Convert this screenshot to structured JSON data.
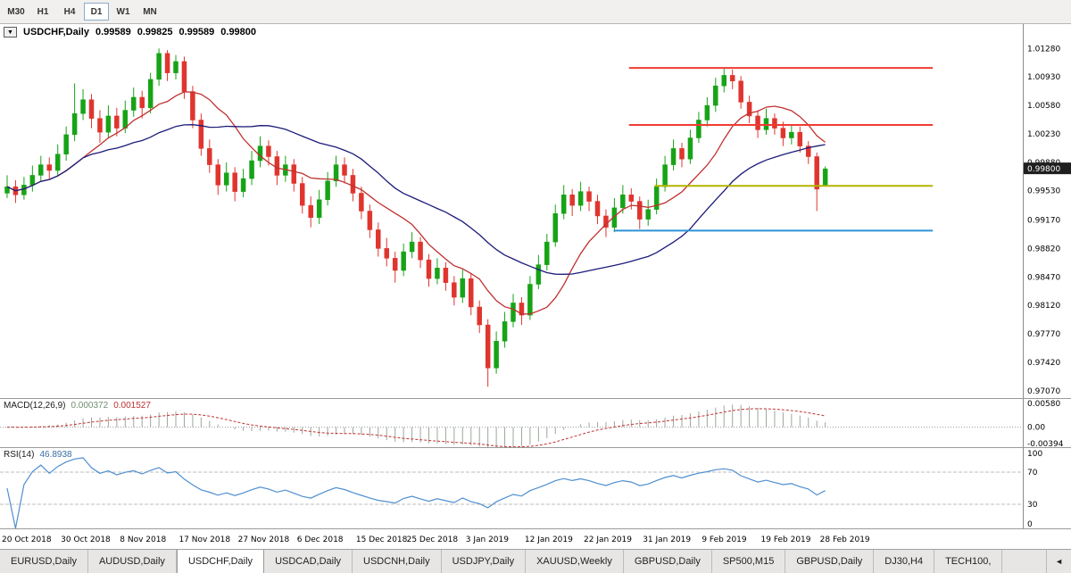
{
  "toolbar": {
    "periods": [
      "M30",
      "H1",
      "H4",
      "D1",
      "W1",
      "MN"
    ],
    "active_period": "D1"
  },
  "chart_header": {
    "collapse_icon": "▼",
    "symbol": "USDCHF,Daily",
    "open": "0.99589",
    "high": "0.99825",
    "low": "0.99589",
    "close": "0.99800"
  },
  "chart_data": {
    "type": "candlestick",
    "title": "USDCHF,Daily",
    "ylim": [
      0.9698,
      1.0158
    ],
    "y_ticks": [
      "1.01280",
      "1.00930",
      "1.00580",
      "1.00230",
      "0.99880",
      "0.99530",
      "0.99170",
      "0.98820",
      "0.98470",
      "0.98120",
      "0.97770",
      "0.97420",
      "0.97070"
    ],
    "current_price": 0.998,
    "current_price_label": "0.99800",
    "x_labels": [
      "20 Oct 2018",
      "30 Oct 2018",
      "8 Nov 2018",
      "17 Nov 2018",
      "27 Nov 2018",
      "6 Dec 2018",
      "15 Dec 2018",
      "25 Dec 2018",
      "3 Jan 2019",
      "12 Jan 2019",
      "22 Jan 2019",
      "31 Jan 2019",
      "9 Feb 2019",
      "19 Feb 2019",
      "28 Feb 2019"
    ],
    "x_label_indices": [
      0,
      7,
      14,
      21,
      28,
      35,
      42,
      48,
      55,
      62,
      69,
      76,
      83,
      90,
      97
    ],
    "bull_color": "#17a317",
    "bear_color": "#df352e",
    "overlays": [
      {
        "name": "ma-fast-line",
        "type": "sma",
        "period": 10,
        "color": "#c03030"
      },
      {
        "name": "ma-slow-line",
        "type": "sma",
        "period": 25,
        "color": "#1b1b7a"
      }
    ],
    "hlines": [
      {
        "name": "resistance-line-upper",
        "price": 1.0104,
        "color": "#f03b32",
        "x1": 0.615,
        "x2": 0.912
      },
      {
        "name": "resistance-line-lower",
        "price": 1.0034,
        "color": "#f03b32",
        "x1": 0.615,
        "x2": 0.912
      },
      {
        "name": "support-line-yellow",
        "price": 0.9959,
        "color": "#b4b400",
        "x1": 0.64,
        "x2": 0.912
      },
      {
        "name": "support-line-blue",
        "price": 0.9904,
        "color": "#2e93d6",
        "x1": 0.6,
        "x2": 0.912
      }
    ],
    "candles": [
      [
        0.995,
        0.9972,
        0.9944,
        0.9958
      ],
      [
        0.9958,
        0.9966,
        0.9938,
        0.9948
      ],
      [
        0.9948,
        0.997,
        0.9942,
        0.996
      ],
      [
        0.996,
        0.9984,
        0.9952,
        0.9972
      ],
      [
        0.9972,
        0.9996,
        0.9965,
        0.9985
      ],
      [
        0.9985,
        0.9994,
        0.9968,
        0.9978
      ],
      [
        0.9978,
        1.001,
        0.9972,
        0.9998
      ],
      [
        0.9998,
        1.0032,
        0.999,
        1.0022
      ],
      [
        1.0022,
        1.0085,
        1.0014,
        1.0048
      ],
      [
        1.0048,
        1.0078,
        1.004,
        1.0065
      ],
      [
        1.0065,
        1.0072,
        1.003,
        1.0042
      ],
      [
        1.0042,
        1.0052,
        1.0012,
        1.0025
      ],
      [
        1.0025,
        1.0058,
        1.0018,
        1.0045
      ],
      [
        1.0045,
        1.0055,
        1.002,
        1.003
      ],
      [
        1.003,
        1.0064,
        1.0024,
        1.0052
      ],
      [
        1.0052,
        1.008,
        1.0044,
        1.0068
      ],
      [
        1.0068,
        1.0076,
        1.0042,
        1.0055
      ],
      [
        1.0055,
        1.0098,
        1.0048,
        1.009
      ],
      [
        1.009,
        1.0128,
        1.0082,
        1.0122
      ],
      [
        1.0122,
        1.0126,
        1.0088,
        1.0098
      ],
      [
        1.0098,
        1.012,
        1.009,
        1.0112
      ],
      [
        1.0112,
        1.0118,
        1.0066,
        1.0075
      ],
      [
        1.0075,
        1.0082,
        1.003,
        1.004
      ],
      [
        1.004,
        1.0048,
        0.9996,
        1.0005
      ],
      [
        1.0005,
        1.0016,
        0.9975,
        0.9985
      ],
      [
        0.9985,
        0.9992,
        0.9948,
        0.996
      ],
      [
        0.996,
        0.9988,
        0.9952,
        0.9975
      ],
      [
        0.9975,
        0.9982,
        0.994,
        0.9952
      ],
      [
        0.9952,
        0.998,
        0.9945,
        0.9968
      ],
      [
        0.9968,
        1.0002,
        0.996,
        0.999
      ],
      [
        0.999,
        1.002,
        0.9982,
        1.0008
      ],
      [
        1.0008,
        1.0015,
        0.9984,
        0.9995
      ],
      [
        0.9995,
        1.0002,
        0.996,
        0.9972
      ],
      [
        0.9972,
        0.9996,
        0.9964,
        0.9985
      ],
      [
        0.9985,
        0.9992,
        0.9952,
        0.9962
      ],
      [
        0.9962,
        0.997,
        0.9925,
        0.9935
      ],
      [
        0.9935,
        0.9946,
        0.9908,
        0.992
      ],
      [
        0.992,
        0.9954,
        0.9912,
        0.9942
      ],
      [
        0.9942,
        0.9976,
        0.9935,
        0.9965
      ],
      [
        0.9965,
        0.9996,
        0.9958,
        0.9985
      ],
      [
        0.9985,
        0.9994,
        0.9962,
        0.9972
      ],
      [
        0.9972,
        0.998,
        0.994,
        0.995
      ],
      [
        0.995,
        0.9958,
        0.9918,
        0.9928
      ],
      [
        0.9928,
        0.9936,
        0.9895,
        0.9905
      ],
      [
        0.9905,
        0.9914,
        0.9872,
        0.9882
      ],
      [
        0.9882,
        0.9895,
        0.986,
        0.987
      ],
      [
        0.987,
        0.9878,
        0.984,
        0.9855
      ],
      [
        0.9855,
        0.9888,
        0.9848,
        0.9878
      ],
      [
        0.9878,
        0.9902,
        0.987,
        0.989
      ],
      [
        0.989,
        0.9896,
        0.9858,
        0.9868
      ],
      [
        0.9868,
        0.9875,
        0.9835,
        0.9845
      ],
      [
        0.9845,
        0.987,
        0.9838,
        0.9858
      ],
      [
        0.9858,
        0.9865,
        0.983,
        0.984
      ],
      [
        0.984,
        0.9848,
        0.9812,
        0.9822
      ],
      [
        0.9822,
        0.9856,
        0.9815,
        0.9845
      ],
      [
        0.9845,
        0.9852,
        0.98,
        0.981
      ],
      [
        0.981,
        0.9818,
        0.9778,
        0.9788
      ],
      [
        0.9788,
        0.9795,
        0.9712,
        0.9735
      ],
      [
        0.9735,
        0.978,
        0.9728,
        0.9768
      ],
      [
        0.9768,
        0.9804,
        0.976,
        0.9792
      ],
      [
        0.9792,
        0.9826,
        0.9785,
        0.9815
      ],
      [
        0.9815,
        0.9822,
        0.9788,
        0.98
      ],
      [
        0.98,
        0.9848,
        0.9794,
        0.9838
      ],
      [
        0.9838,
        0.9874,
        0.9832,
        0.9862
      ],
      [
        0.9862,
        0.99,
        0.9855,
        0.989
      ],
      [
        0.989,
        0.9936,
        0.9884,
        0.9925
      ],
      [
        0.9925,
        0.996,
        0.9918,
        0.9948
      ],
      [
        0.9948,
        0.9955,
        0.9922,
        0.9935
      ],
      [
        0.9935,
        0.9964,
        0.9928,
        0.9952
      ],
      [
        0.9952,
        0.9958,
        0.9928,
        0.994
      ],
      [
        0.994,
        0.9948,
        0.9912,
        0.9922
      ],
      [
        0.9922,
        0.993,
        0.9896,
        0.9908
      ],
      [
        0.9908,
        0.9944,
        0.9902,
        0.9932
      ],
      [
        0.9932,
        0.996,
        0.9925,
        0.9948
      ],
      [
        0.9948,
        0.9956,
        0.993,
        0.994
      ],
      [
        0.994,
        0.9946,
        0.9906,
        0.9918
      ],
      [
        0.9918,
        0.9942,
        0.991,
        0.993
      ],
      [
        0.993,
        0.9968,
        0.9924,
        0.9958
      ],
      [
        0.9958,
        0.9996,
        0.9952,
        0.9985
      ],
      [
        0.9985,
        1.0016,
        0.9978,
        1.0005
      ],
      [
        1.0005,
        1.0012,
        0.9982,
        0.9992
      ],
      [
        0.9992,
        1.0028,
        0.9986,
        1.0018
      ],
      [
        1.0018,
        1.005,
        1.0012,
        1.004
      ],
      [
        1.004,
        1.0068,
        1.0032,
        1.0058
      ],
      [
        1.0058,
        1.0092,
        1.005,
        1.0082
      ],
      [
        1.0082,
        1.0103,
        1.0074,
        1.0095
      ],
      [
        1.0095,
        1.0102,
        1.0078,
        1.0088
      ],
      [
        1.0088,
        1.0094,
        1.0054,
        1.0062
      ],
      [
        1.0062,
        1.007,
        1.0036,
        1.0045
      ],
      [
        1.0045,
        1.0052,
        1.0018,
        1.0028
      ],
      [
        1.0028,
        1.0054,
        1.0022,
        1.0042
      ],
      [
        1.0042,
        1.0048,
        1.0022,
        1.003
      ],
      [
        1.003,
        1.0038,
        1.0008,
        1.0018
      ],
      [
        1.0018,
        1.0034,
        1.001,
        1.0025
      ],
      [
        1.0025,
        1.0032,
        1.0,
        1.0008
      ],
      [
        1.0008,
        1.0014,
        0.9986,
        0.9995
      ],
      [
        0.9995,
        1.0,
        0.9928,
        0.9955
      ],
      [
        0.9959,
        0.9983,
        0.9959,
        0.998
      ]
    ]
  },
  "macd": {
    "label": "MACD(12,26,9)",
    "value1": "0.000372",
    "value2": "0.001527",
    "params": {
      "fast": 12,
      "slow": 26,
      "signal": 9
    },
    "scale_top": 0.0062,
    "scale_bottom": -0.0044,
    "axis": [
      {
        "text": "0.00580",
        "value": 0.0058
      },
      {
        "text": "0.00",
        "value": 0
      },
      {
        "text": "-0.00394",
        "value": -0.00394
      }
    ],
    "hist_color": "#9aa89a",
    "signal_color": "#c03030"
  },
  "rsi": {
    "label": "RSI(14)",
    "value": "46.8938",
    "period": 14,
    "levels": [
      70,
      30
    ],
    "line_color": "#4f8fd0",
    "axis": [
      {
        "text": "100",
        "value": 100
      },
      {
        "text": "70",
        "value": 70
      },
      {
        "text": "30",
        "value": 30
      },
      {
        "text": "0",
        "value": 0
      }
    ]
  },
  "tabs": {
    "active_index": 2,
    "items": [
      "EURUSD,Daily",
      "AUDUSD,Daily",
      "USDCHF,Daily",
      "USDCAD,Daily",
      "USDCNH,Daily",
      "USDJPY,Daily",
      "XAUUSD,Weekly",
      "GBPUSD,Daily",
      "SP500,M15",
      "GBPUSD,Daily",
      "DJ30,H4",
      "TECH100,"
    ],
    "scroll_left": "◄"
  }
}
